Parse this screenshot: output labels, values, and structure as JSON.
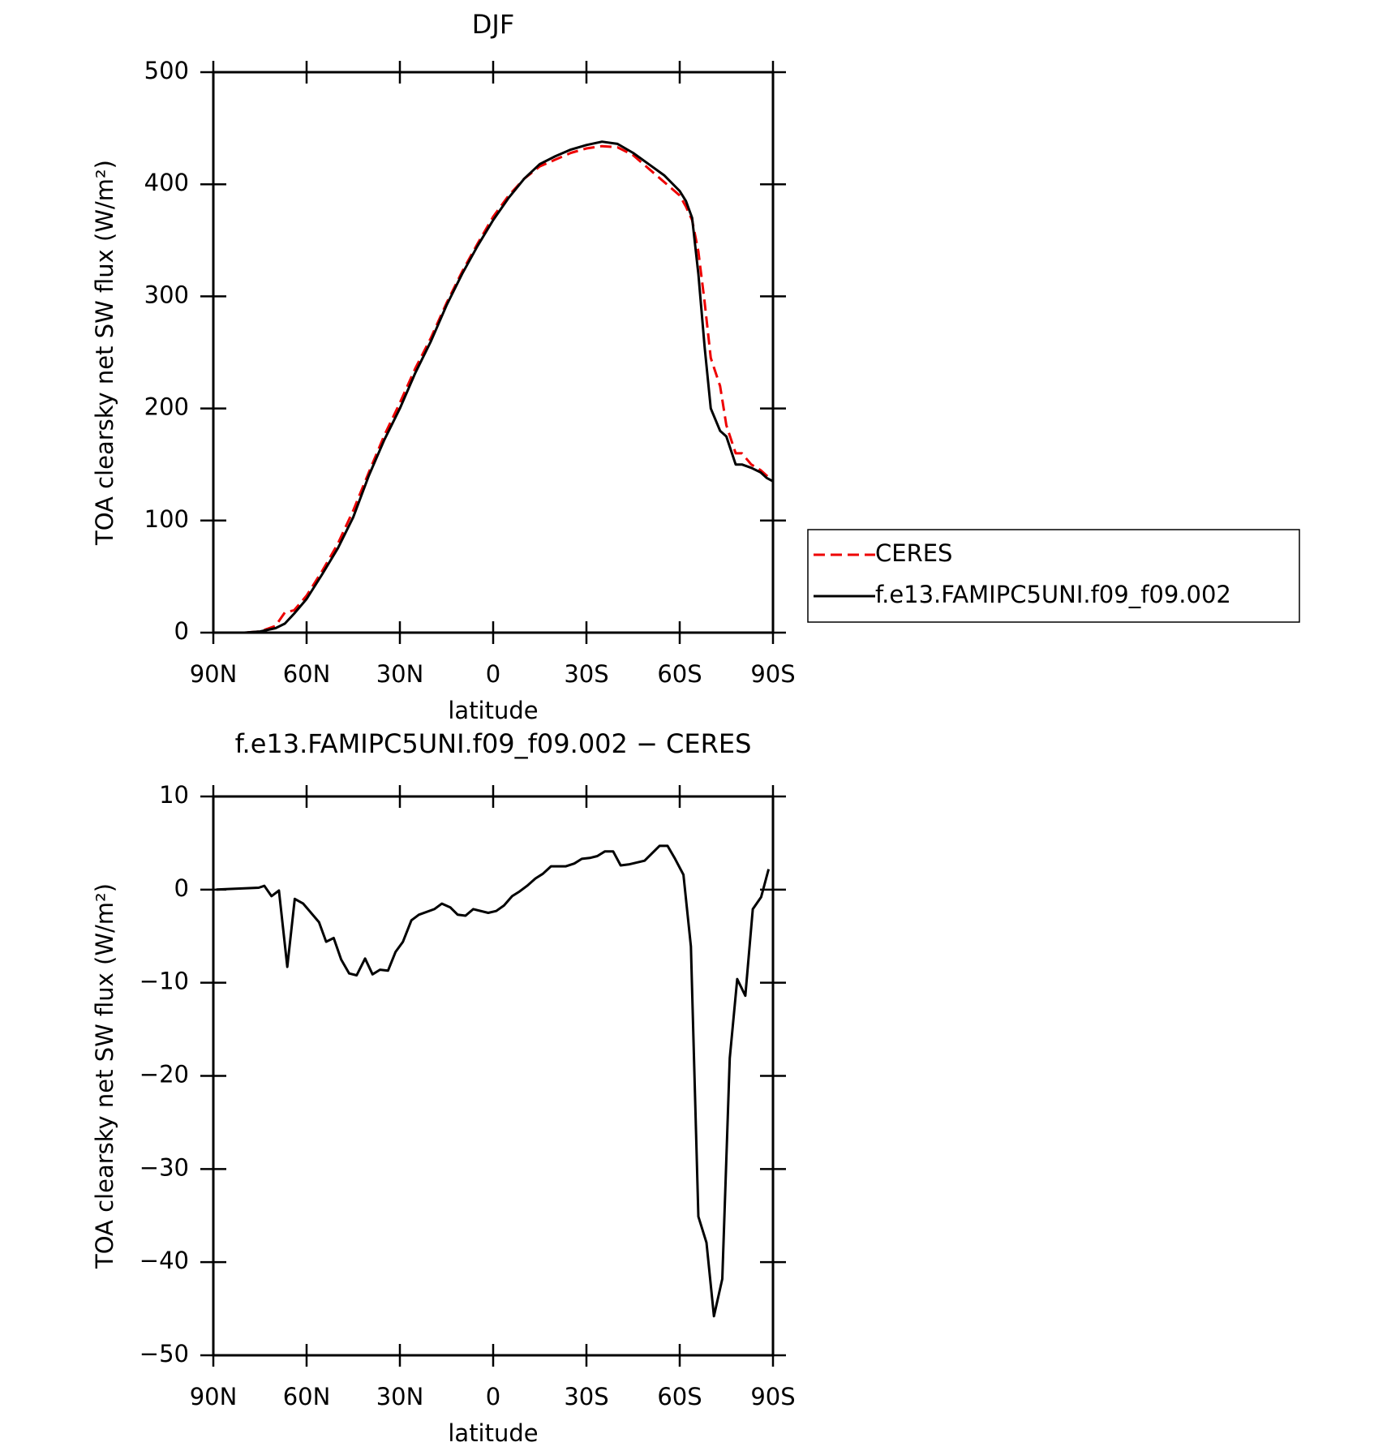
{
  "chart_data": [
    {
      "type": "line",
      "title": "DJF",
      "xlabel": "latitude",
      "ylabel": "TOA clearsky net SW flux (W/m²)",
      "x": [
        90,
        80,
        75,
        70,
        67,
        64,
        60,
        55,
        50,
        45,
        40,
        35,
        30,
        25,
        20,
        15,
        10,
        5,
        0,
        -5,
        -10,
        -15,
        -20,
        -25,
        -30,
        -35,
        -40,
        -45,
        -50,
        -55,
        -60,
        -62,
        -64,
        -66,
        -68,
        -70,
        -73,
        -75,
        -78,
        -80,
        -83,
        -86,
        -88,
        -90
      ],
      "series": [
        {
          "name": "CERES",
          "color": "#ee0000",
          "dash": true,
          "values": [
            0,
            0,
            1,
            6,
            18,
            20,
            33,
            55,
            79,
            109,
            143,
            176,
            205,
            236,
            263,
            294,
            322,
            347,
            371,
            390,
            405,
            416,
            422,
            428,
            432,
            434,
            433,
            426,
            414,
            402,
            390,
            380,
            368,
            340,
            295,
            245,
            220,
            185,
            160,
            160,
            150,
            145,
            140,
            136
          ]
        },
        {
          "name": "f.e13.FAMIPC5UNI.f09_f09.002",
          "color": "#000000",
          "dash": false,
          "values": [
            0,
            0,
            1,
            4,
            8,
            17,
            30,
            52,
            75,
            103,
            140,
            172,
            200,
            232,
            260,
            292,
            320,
            345,
            368,
            388,
            405,
            418,
            425,
            431,
            435,
            438,
            436,
            428,
            418,
            408,
            394,
            385,
            370,
            320,
            255,
            200,
            180,
            175,
            150,
            150,
            147,
            143,
            138,
            135
          ]
        }
      ],
      "xlim": [
        90,
        -90
      ],
      "xticks": [
        {
          "value": 90,
          "label": "90N"
        },
        {
          "value": 60,
          "label": "60N"
        },
        {
          "value": 30,
          "label": "30N"
        },
        0,
        {
          "value": -30,
          "label": "30S"
        },
        {
          "value": -60,
          "label": "60S"
        },
        {
          "value": -90,
          "label": "90S"
        }
      ],
      "ylim": [
        0,
        500
      ],
      "yticks": [
        0,
        100,
        200,
        300,
        400,
        500
      ],
      "legend": "right"
    },
    {
      "type": "line",
      "title": "f.e13.FAMIPC5UNI.f09_f09.002 − CERES",
      "xlabel": "latitude",
      "ylabel": "TOA clearsky net SW flux (W/m²)",
      "x": [
        89,
        75.4,
        73.6,
        71.3,
        68.9,
        66.2,
        63.8,
        61.1,
        56,
        53.7,
        51.3,
        48.9,
        46.3,
        43.9,
        41.2,
        38.8,
        36.4,
        33.8,
        31.4,
        29,
        26.3,
        23.9,
        18.9,
        16.5,
        13.8,
        11.4,
        8.9,
        6.4,
        1.6,
        -1,
        -3.5,
        -6.1,
        -8.5,
        -10.9,
        -13.6,
        -16,
        -18.6,
        -23.4,
        -26.1,
        -28.5,
        -31.1,
        -33.5,
        -35.9,
        -38.6,
        -41,
        -43.6,
        -48.7,
        -53.5,
        -56.1,
        -58.5,
        -61.2,
        -63.6,
        -66,
        -68.6,
        -71,
        -73.7,
        -76.1,
        -78.5,
        -81.1,
        -83.5,
        -86.2,
        -88.6
      ],
      "series": [
        {
          "name": "f.e13.FAMIPC5UNI.f09_f09.002 − CERES",
          "color": "#000000",
          "dash": false,
          "values": [
            0,
            0.2,
            0.4,
            -0.7,
            -0.1,
            -8.3,
            -1,
            -1.5,
            -3.5,
            -5.6,
            -5.2,
            -7.5,
            -9,
            -9.2,
            -7.4,
            -9.1,
            -8.6,
            -8.7,
            -6.7,
            -5.6,
            -3.3,
            -2.7,
            -2.1,
            -1.5,
            -1.9,
            -2.7,
            -2.8,
            -2.1,
            -2.5,
            -2.3,
            -1.7,
            -0.7,
            -0.2,
            0.4,
            1.2,
            1.7,
            2.5,
            2.5,
            2.8,
            3.3,
            3.4,
            3.6,
            4.1,
            4.1,
            2.6,
            2.7,
            3.1,
            4.7,
            4.7,
            3.3,
            1.6,
            -6.1,
            -35.1,
            -37.9,
            -45.8,
            -41.8,
            -18.1,
            -9.6,
            -11.4,
            -2.1,
            -0.8,
            2.2
          ]
        }
      ],
      "xlim": [
        90,
        -90
      ],
      "xticks": [
        {
          "value": 90,
          "label": "90N"
        },
        {
          "value": 60,
          "label": "60N"
        },
        {
          "value": 30,
          "label": "30N"
        },
        0,
        {
          "value": -30,
          "label": "30S"
        },
        {
          "value": -60,
          "label": "60S"
        },
        {
          "value": -90,
          "label": "90S"
        }
      ],
      "ylim": [
        -50,
        10
      ],
      "yticks": [
        {
          "value": -50,
          "label": "−50"
        },
        {
          "value": -40,
          "label": "−40"
        },
        {
          "value": -30,
          "label": "−30"
        },
        {
          "value": -20,
          "label": "−20"
        },
        {
          "value": -10,
          "label": "−10"
        },
        0,
        10
      ]
    }
  ]
}
